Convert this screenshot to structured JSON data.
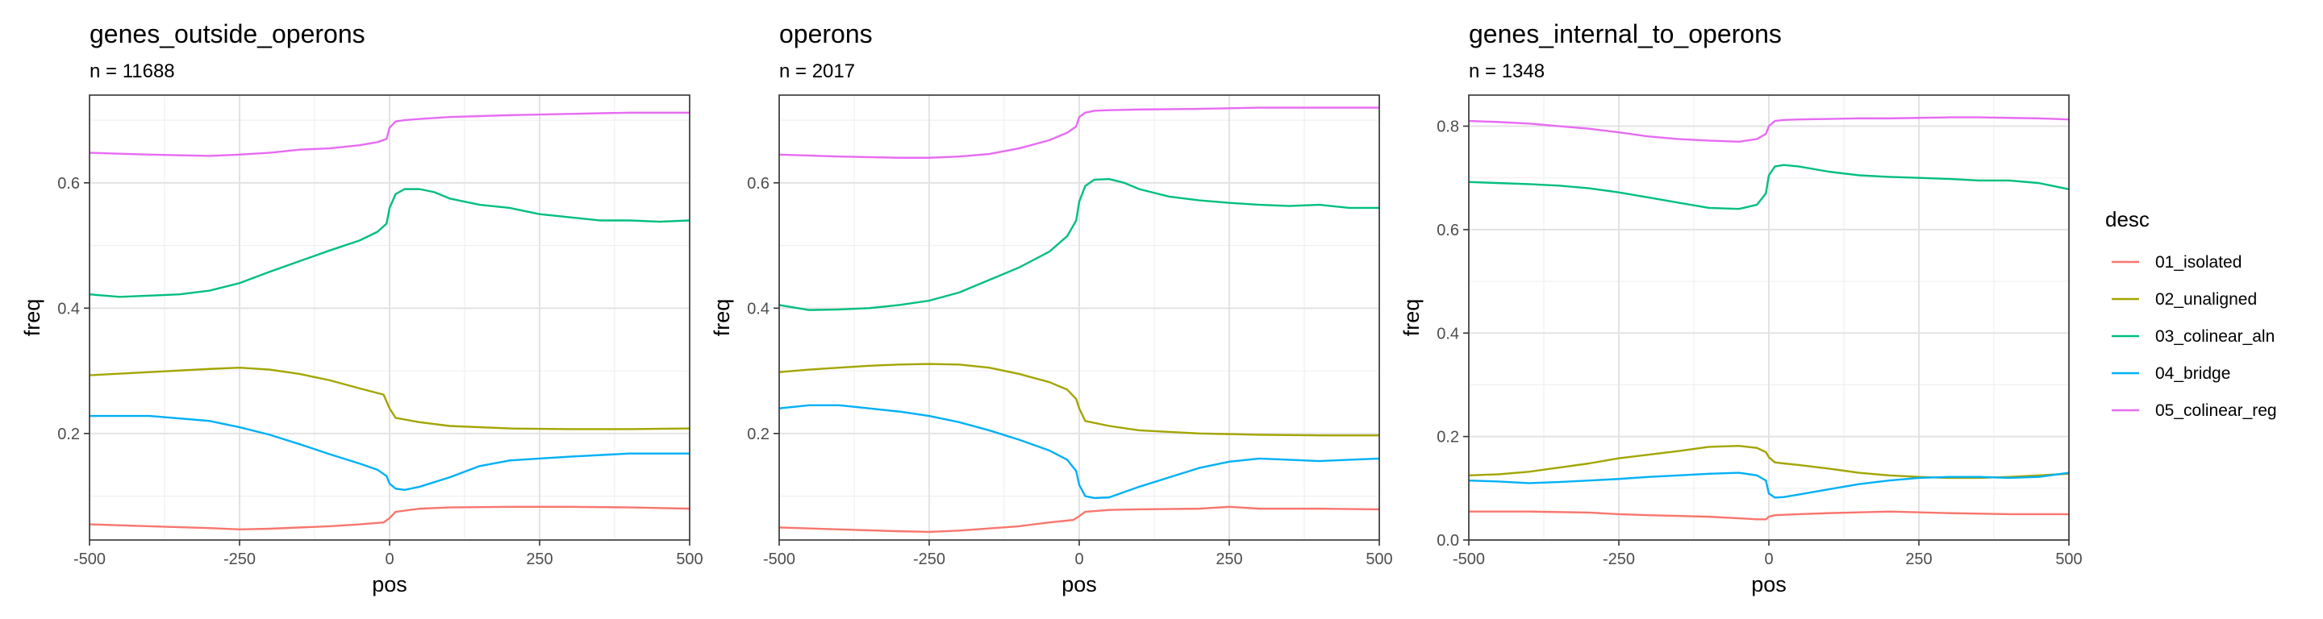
{
  "legend": {
    "title": "desc",
    "entries": [
      "01_isolated",
      "02_unaligned",
      "03_colinear_aln",
      "04_bridge",
      "05_colinear_reg"
    ],
    "colors": [
      "#F8766D",
      "#A3A500",
      "#00BF7D",
      "#00B0F6",
      "#E76BF3"
    ],
    "placement": "right"
  },
  "chart_data": [
    {
      "type": "line",
      "title": "genes_outside_operons",
      "subtitle": "n = 11688",
      "xlabel": "pos",
      "ylabel": "freq",
      "xlim": [
        -500,
        500
      ],
      "ylim": [
        0.03,
        0.74
      ],
      "xticks": [
        -500,
        -250,
        0,
        250,
        500
      ],
      "xtick_labels": [
        "-500",
        "-250",
        "0",
        "250",
        "500"
      ],
      "yticks": [
        0.2,
        0.4,
        0.6
      ],
      "ytick_labels": [
        "0.2",
        "0.4",
        "0.6"
      ],
      "grid": true,
      "series": [
        {
          "name": "01_isolated",
          "x": [
            -500,
            -400,
            -300,
            -250,
            -200,
            -100,
            -50,
            -10,
            0,
            10,
            50,
            100,
            200,
            300,
            400,
            500
          ],
          "y": [
            0.055,
            0.052,
            0.049,
            0.047,
            0.048,
            0.052,
            0.055,
            0.058,
            0.065,
            0.075,
            0.08,
            0.082,
            0.083,
            0.083,
            0.082,
            0.08
          ]
        },
        {
          "name": "02_unaligned",
          "x": [
            -500,
            -400,
            -300,
            -250,
            -200,
            -150,
            -100,
            -50,
            -10,
            0,
            10,
            50,
            100,
            200,
            300,
            400,
            500
          ],
          "y": [
            0.293,
            0.298,
            0.303,
            0.305,
            0.302,
            0.295,
            0.285,
            0.272,
            0.262,
            0.24,
            0.225,
            0.218,
            0.212,
            0.208,
            0.207,
            0.207,
            0.208
          ]
        },
        {
          "name": "03_colinear_aln",
          "x": [
            -500,
            -450,
            -400,
            -350,
            -300,
            -250,
            -200,
            -150,
            -100,
            -50,
            -20,
            -5,
            0,
            10,
            25,
            50,
            75,
            100,
            150,
            200,
            250,
            300,
            350,
            400,
            450,
            500
          ],
          "y": [
            0.422,
            0.418,
            0.42,
            0.422,
            0.428,
            0.44,
            0.458,
            0.475,
            0.492,
            0.508,
            0.522,
            0.535,
            0.56,
            0.582,
            0.59,
            0.59,
            0.585,
            0.575,
            0.565,
            0.56,
            0.55,
            0.545,
            0.54,
            0.54,
            0.538,
            0.54
          ]
        },
        {
          "name": "04_bridge",
          "x": [
            -500,
            -400,
            -300,
            -250,
            -200,
            -150,
            -100,
            -50,
            -20,
            -5,
            0,
            10,
            25,
            50,
            100,
            150,
            200,
            300,
            400,
            500
          ],
          "y": [
            0.228,
            0.228,
            0.22,
            0.21,
            0.198,
            0.183,
            0.167,
            0.152,
            0.142,
            0.132,
            0.12,
            0.112,
            0.11,
            0.115,
            0.13,
            0.148,
            0.157,
            0.163,
            0.168,
            0.168
          ]
        },
        {
          "name": "05_colinear_reg",
          "x": [
            -500,
            -400,
            -300,
            -250,
            -200,
            -150,
            -100,
            -50,
            -20,
            -5,
            0,
            10,
            25,
            50,
            100,
            200,
            300,
            400,
            500
          ],
          "y": [
            0.648,
            0.645,
            0.643,
            0.645,
            0.648,
            0.653,
            0.655,
            0.66,
            0.665,
            0.67,
            0.688,
            0.698,
            0.7,
            0.702,
            0.705,
            0.708,
            0.71,
            0.712,
            0.712
          ]
        }
      ]
    },
    {
      "type": "line",
      "title": "operons",
      "subtitle": "n = 2017",
      "xlabel": "pos",
      "ylabel": "freq",
      "xlim": [
        -500,
        500
      ],
      "ylim": [
        0.03,
        0.74
      ],
      "xticks": [
        -500,
        -250,
        0,
        250,
        500
      ],
      "xtick_labels": [
        "-500",
        "-250",
        "0",
        "250",
        "500"
      ],
      "yticks": [
        0.2,
        0.4,
        0.6
      ],
      "ytick_labels": [
        "0.2",
        "0.4",
        "0.6"
      ],
      "grid": true,
      "series": [
        {
          "name": "01_isolated",
          "x": [
            -500,
            -400,
            -300,
            -250,
            -200,
            -100,
            -50,
            -10,
            0,
            10,
            50,
            100,
            200,
            250,
            300,
            400,
            500
          ],
          "y": [
            0.05,
            0.047,
            0.044,
            0.043,
            0.045,
            0.052,
            0.058,
            0.062,
            0.068,
            0.075,
            0.078,
            0.079,
            0.08,
            0.083,
            0.08,
            0.08,
            0.079
          ]
        },
        {
          "name": "02_unaligned",
          "x": [
            -500,
            -450,
            -400,
            -350,
            -300,
            -250,
            -200,
            -150,
            -100,
            -50,
            -20,
            -5,
            0,
            10,
            50,
            100,
            200,
            300,
            400,
            500
          ],
          "y": [
            0.298,
            0.302,
            0.305,
            0.308,
            0.31,
            0.311,
            0.31,
            0.305,
            0.295,
            0.282,
            0.27,
            0.255,
            0.24,
            0.22,
            0.212,
            0.205,
            0.2,
            0.198,
            0.197,
            0.197
          ]
        },
        {
          "name": "03_colinear_aln",
          "x": [
            -500,
            -450,
            -400,
            -350,
            -300,
            -250,
            -200,
            -150,
            -100,
            -50,
            -20,
            -5,
            0,
            10,
            25,
            50,
            75,
            100,
            150,
            200,
            250,
            300,
            350,
            400,
            450,
            500
          ],
          "y": [
            0.405,
            0.397,
            0.398,
            0.4,
            0.405,
            0.412,
            0.425,
            0.445,
            0.465,
            0.49,
            0.515,
            0.54,
            0.57,
            0.595,
            0.605,
            0.606,
            0.6,
            0.59,
            0.578,
            0.572,
            0.568,
            0.565,
            0.563,
            0.565,
            0.56,
            0.56
          ]
        },
        {
          "name": "04_bridge",
          "x": [
            -500,
            -450,
            -400,
            -350,
            -300,
            -250,
            -200,
            -150,
            -100,
            -50,
            -20,
            -5,
            0,
            10,
            25,
            50,
            100,
            150,
            200,
            250,
            300,
            350,
            400,
            450,
            500
          ],
          "y": [
            0.24,
            0.245,
            0.245,
            0.24,
            0.235,
            0.228,
            0.218,
            0.205,
            0.19,
            0.173,
            0.158,
            0.14,
            0.118,
            0.1,
            0.097,
            0.098,
            0.115,
            0.13,
            0.145,
            0.155,
            0.16,
            0.158,
            0.156,
            0.158,
            0.16
          ]
        },
        {
          "name": "05_colinear_reg",
          "x": [
            -500,
            -400,
            -300,
            -250,
            -200,
            -150,
            -100,
            -50,
            -20,
            -5,
            0,
            10,
            25,
            50,
            100,
            200,
            300,
            400,
            500
          ],
          "y": [
            0.645,
            0.642,
            0.64,
            0.64,
            0.642,
            0.646,
            0.655,
            0.668,
            0.68,
            0.69,
            0.705,
            0.712,
            0.715,
            0.716,
            0.717,
            0.718,
            0.72,
            0.72,
            0.72
          ]
        }
      ]
    },
    {
      "type": "line",
      "title": "genes_internal_to_operons",
      "subtitle": "n = 1348",
      "xlabel": "pos",
      "ylabel": "freq",
      "xlim": [
        -500,
        500
      ],
      "ylim": [
        0.0,
        0.86
      ],
      "xticks": [
        -500,
        -250,
        0,
        250,
        500
      ],
      "xtick_labels": [
        "-500",
        "-250",
        "0",
        "250",
        "500"
      ],
      "yticks": [
        0.0,
        0.2,
        0.4,
        0.6,
        0.8
      ],
      "ytick_labels": [
        "0.0",
        "0.2",
        "0.4",
        "0.6",
        "0.8"
      ],
      "grid": true,
      "series": [
        {
          "name": "01_isolated",
          "x": [
            -500,
            -400,
            -300,
            -250,
            -200,
            -100,
            -50,
            -20,
            -5,
            0,
            10,
            50,
            100,
            200,
            300,
            400,
            500
          ],
          "y": [
            0.055,
            0.055,
            0.053,
            0.05,
            0.048,
            0.045,
            0.042,
            0.04,
            0.04,
            0.045,
            0.048,
            0.05,
            0.052,
            0.055,
            0.052,
            0.05,
            0.05
          ]
        },
        {
          "name": "02_unaligned",
          "x": [
            -500,
            -450,
            -400,
            -350,
            -300,
            -250,
            -200,
            -150,
            -100,
            -50,
            -20,
            -5,
            0,
            10,
            25,
            50,
            100,
            150,
            200,
            250,
            300,
            350,
            400,
            450,
            500
          ],
          "y": [
            0.125,
            0.127,
            0.132,
            0.14,
            0.148,
            0.158,
            0.165,
            0.172,
            0.18,
            0.182,
            0.178,
            0.17,
            0.16,
            0.15,
            0.148,
            0.145,
            0.138,
            0.13,
            0.125,
            0.122,
            0.12,
            0.12,
            0.122,
            0.125,
            0.128
          ]
        },
        {
          "name": "03_colinear_aln",
          "x": [
            -500,
            -450,
            -400,
            -350,
            -300,
            -250,
            -200,
            -150,
            -100,
            -50,
            -20,
            -5,
            0,
            10,
            25,
            50,
            100,
            150,
            200,
            250,
            300,
            350,
            400,
            450,
            500
          ],
          "y": [
            0.692,
            0.69,
            0.688,
            0.685,
            0.68,
            0.672,
            0.662,
            0.652,
            0.642,
            0.64,
            0.648,
            0.67,
            0.705,
            0.722,
            0.725,
            0.722,
            0.712,
            0.705,
            0.702,
            0.7,
            0.698,
            0.695,
            0.695,
            0.69,
            0.678
          ]
        },
        {
          "name": "04_bridge",
          "x": [
            -500,
            -450,
            -400,
            -350,
            -300,
            -250,
            -200,
            -150,
            -100,
            -50,
            -20,
            -5,
            0,
            10,
            25,
            50,
            100,
            150,
            200,
            250,
            300,
            350,
            400,
            450,
            500
          ],
          "y": [
            0.115,
            0.113,
            0.11,
            0.112,
            0.115,
            0.118,
            0.122,
            0.125,
            0.128,
            0.13,
            0.125,
            0.115,
            0.09,
            0.082,
            0.083,
            0.088,
            0.098,
            0.108,
            0.115,
            0.12,
            0.122,
            0.122,
            0.12,
            0.122,
            0.13
          ]
        },
        {
          "name": "05_colinear_reg",
          "x": [
            -500,
            -450,
            -400,
            -350,
            -300,
            -250,
            -200,
            -150,
            -100,
            -50,
            -20,
            -5,
            0,
            10,
            25,
            50,
            100,
            150,
            200,
            250,
            300,
            350,
            400,
            450,
            500
          ],
          "y": [
            0.81,
            0.808,
            0.805,
            0.8,
            0.795,
            0.788,
            0.78,
            0.775,
            0.772,
            0.77,
            0.775,
            0.785,
            0.8,
            0.81,
            0.812,
            0.813,
            0.814,
            0.815,
            0.815,
            0.816,
            0.817,
            0.817,
            0.816,
            0.815,
            0.813
          ]
        }
      ]
    }
  ]
}
